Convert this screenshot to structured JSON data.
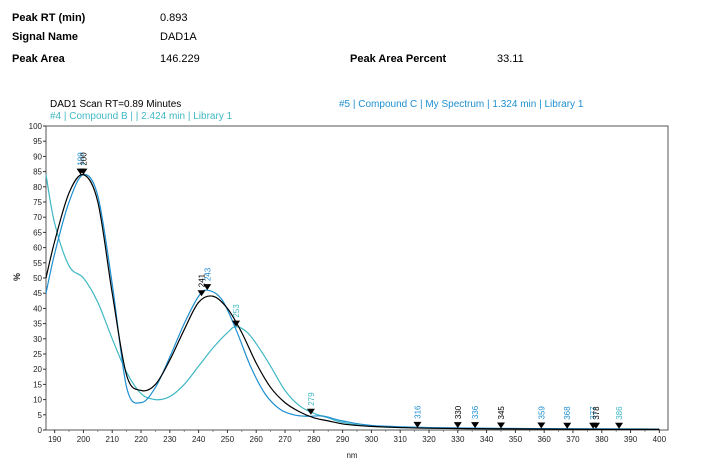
{
  "peak_info": {
    "peak_rt_label": "Peak RT (min)",
    "peak_rt_value": "0.893",
    "signal_name_label": "Signal Name",
    "signal_name_value": "DAD1A",
    "peak_area_label": "Peak Area",
    "peak_area_value": "146.229",
    "peak_area_percent_label": "Peak Area Percent",
    "peak_area_percent_value": "33.11"
  },
  "colors": {
    "black": "#000000",
    "blue": "#1f8fd0",
    "teal": "#3fb8c4"
  },
  "chart_data": {
    "type": "line",
    "xlabel": "nm",
    "ylabel": "%",
    "xlim": [
      187,
      403
    ],
    "ylim": [
      0,
      100
    ],
    "x_ticks": [
      190,
      200,
      210,
      220,
      230,
      240,
      250,
      260,
      270,
      280,
      290,
      300,
      310,
      320,
      330,
      340,
      350,
      360,
      370,
      380,
      390,
      400
    ],
    "y_ticks": [
      0,
      5,
      10,
      15,
      20,
      25,
      30,
      35,
      40,
      45,
      50,
      55,
      60,
      65,
      70,
      75,
      80,
      85,
      90,
      95,
      100
    ],
    "series": [
      {
        "name": "DAD1 Scan RT=0.89 Minutes",
        "color": "#000000",
        "x": [
          187,
          190,
          195,
          200,
          205,
          210,
          215,
          220,
          225,
          230,
          235,
          240,
          245,
          250,
          255,
          260,
          265,
          270,
          275,
          280,
          285,
          290,
          295,
          300,
          310,
          320,
          340,
          360,
          380,
          400
        ],
        "y": [
          50,
          62,
          78,
          84,
          75,
          45,
          18,
          13,
          15,
          23,
          33,
          42,
          44,
          40,
          32,
          22,
          14,
          9,
          6,
          4,
          3,
          2,
          1.5,
          1.2,
          0.8,
          0.6,
          0.4,
          0.3,
          0.2,
          0.2
        ]
      },
      {
        "name": "#5 | Compound C | My Spectrum | 1.324 min | Library 1",
        "color": "#1f8fd0",
        "x": [
          187,
          190,
          195,
          200,
          205,
          210,
          215,
          220,
          225,
          230,
          235,
          240,
          243,
          248,
          253,
          258,
          263,
          268,
          273,
          278,
          283,
          290,
          300,
          320,
          350,
          400
        ],
        "y": [
          45,
          58,
          75,
          84,
          77,
          48,
          14,
          9,
          14,
          24,
          35,
          44,
          46,
          43,
          33,
          21,
          12,
          7,
          5,
          4.5,
          4.6,
          3,
          1.5,
          0.8,
          0.5,
          0.3
        ]
      },
      {
        "name": "#4 | Compound B | | 2.424 min | Library 1",
        "color": "#3fb8c4",
        "x": [
          187,
          190,
          195,
          200,
          205,
          210,
          215,
          220,
          225,
          230,
          235,
          240,
          245,
          250,
          253,
          257,
          261,
          265,
          270,
          275,
          280,
          285,
          290,
          300,
          320,
          350,
          400
        ],
        "y": [
          84,
          68,
          54,
          50,
          42,
          30,
          19,
          12,
          10,
          11,
          15,
          21,
          27,
          32,
          34,
          32,
          27,
          21,
          13,
          8,
          5.5,
          4,
          2.5,
          1.2,
          0.6,
          0.4,
          0.3
        ]
      }
    ],
    "peak_markers": [
      {
        "label": "199",
        "x": 199,
        "y": 84,
        "color": "#1f8fd0"
      },
      {
        "label": "200",
        "x": 200,
        "y": 84,
        "color": "#000000"
      },
      {
        "label": "241",
        "x": 241,
        "y": 44,
        "color": "#000000"
      },
      {
        "label": "243",
        "x": 243,
        "y": 46,
        "color": "#1f8fd0"
      },
      {
        "label": "253",
        "x": 253,
        "y": 34,
        "color": "#3fb8c4"
      },
      {
        "label": "279",
        "x": 279,
        "y": 5,
        "color": "#3fb8c4"
      },
      {
        "label": "316",
        "x": 316,
        "y": 0.7,
        "color": "#1f8fd0"
      },
      {
        "label": "330",
        "x": 330,
        "y": 0.6,
        "color": "#000000"
      },
      {
        "label": "336",
        "x": 336,
        "y": 0.6,
        "color": "#1f8fd0"
      },
      {
        "label": "345",
        "x": 345,
        "y": 0.5,
        "color": "#000000"
      },
      {
        "label": "359",
        "x": 359,
        "y": 0.5,
        "color": "#1f8fd0"
      },
      {
        "label": "368",
        "x": 368,
        "y": 0.4,
        "color": "#1f8fd0"
      },
      {
        "label": "377",
        "x": 377,
        "y": 0.4,
        "color": "#1f8fd0"
      },
      {
        "label": "378",
        "x": 378,
        "y": 0.4,
        "color": "#000000"
      },
      {
        "label": "386",
        "x": 386,
        "y": 0.4,
        "color": "#3fb8c4"
      }
    ]
  }
}
